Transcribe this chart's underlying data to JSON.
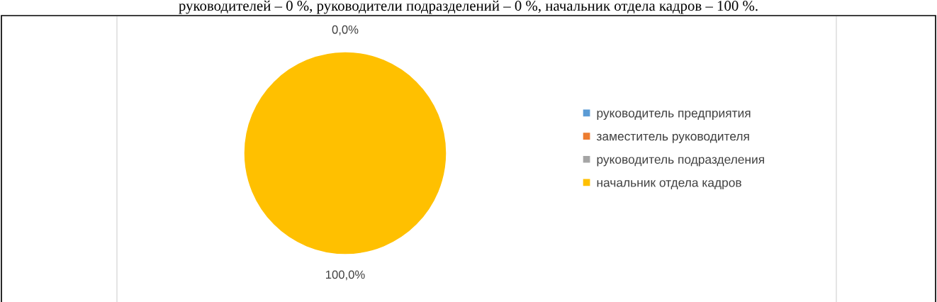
{
  "chart_data": {
    "type": "pie",
    "categories": [
      "руководитель предприятия",
      "заместитель руководителя",
      "руководитель подразделения",
      "начальник отдела кадров"
    ],
    "values": [
      0,
      0,
      0,
      100
    ],
    "colors": [
      "#5b9bd5",
      "#ed7d31",
      "#a5a5a5",
      "#ffc000"
    ],
    "value_labels": [
      "0,0%",
      null,
      null,
      "100,0%"
    ],
    "legend": "right",
    "annotations": [
      "руководителей – 0 %, руководители подразделений – 0 %, начальник отдела кадров – 100 %."
    ]
  }
}
